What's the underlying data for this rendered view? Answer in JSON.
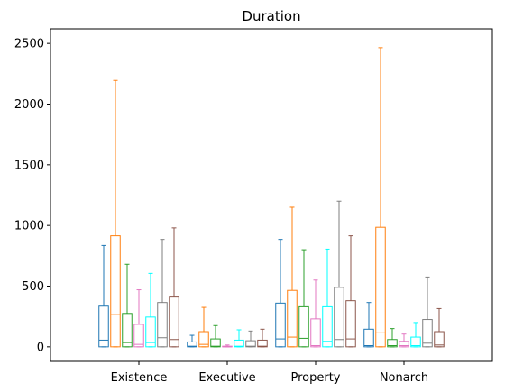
{
  "chart_data": {
    "type": "box",
    "title": "Duration",
    "xlabel": "",
    "ylabel": "",
    "categories": [
      "Existence",
      "Executive",
      "Property",
      "Nonarch"
    ],
    "ylim": [
      -120,
      2620
    ],
    "yticks": [
      0,
      500,
      1000,
      1500,
      2000,
      2500
    ],
    "ytick_labels": [
      "0",
      "500",
      "1000",
      "1500",
      "2000",
      "2500"
    ],
    "grid": false,
    "legend": "none",
    "series": [
      {
        "color": "#1f77b4",
        "boxes": [
          {
            "min": 0,
            "q1": 0,
            "median": 55,
            "q3": 335,
            "max": 835
          },
          {
            "min": 0,
            "q1": 0,
            "median": 5,
            "q3": 40,
            "max": 95
          },
          {
            "min": 0,
            "q1": 0,
            "median": 65,
            "q3": 360,
            "max": 885
          },
          {
            "min": 0,
            "q1": 0,
            "median": 10,
            "q3": 145,
            "max": 365
          }
        ]
      },
      {
        "color": "#ff7f0e",
        "boxes": [
          {
            "min": 0,
            "q1": 0,
            "median": 265,
            "q3": 915,
            "max": 2195
          },
          {
            "min": 0,
            "q1": 0,
            "median": 20,
            "q3": 125,
            "max": 325
          },
          {
            "min": 0,
            "q1": 0,
            "median": 80,
            "q3": 465,
            "max": 1150
          },
          {
            "min": 0,
            "q1": 0,
            "median": 115,
            "q3": 985,
            "max": 2465
          }
        ]
      },
      {
        "color": "#2ca02c",
        "boxes": [
          {
            "min": 0,
            "q1": 0,
            "median": 35,
            "q3": 275,
            "max": 680
          },
          {
            "min": 0,
            "q1": 0,
            "median": 5,
            "q3": 65,
            "max": 175
          },
          {
            "min": 0,
            "q1": 0,
            "median": 70,
            "q3": 330,
            "max": 800
          },
          {
            "min": 0,
            "q1": 0,
            "median": 10,
            "q3": 60,
            "max": 150
          }
        ]
      },
      {
        "color": "#e377c2",
        "boxes": [
          {
            "min": 0,
            "q1": 0,
            "median": 20,
            "q3": 185,
            "max": 470
          },
          {
            "min": 0,
            "q1": 0,
            "median": 0,
            "q3": 5,
            "max": 15
          },
          {
            "min": 0,
            "q1": 0,
            "median": 10,
            "q3": 230,
            "max": 550
          },
          {
            "min": 0,
            "q1": 0,
            "median": 10,
            "q3": 45,
            "max": 105
          }
        ]
      },
      {
        "color": "#00ffff",
        "boxes": [
          {
            "min": 0,
            "q1": 0,
            "median": 35,
            "q3": 245,
            "max": 605
          },
          {
            "min": 0,
            "q1": 0,
            "median": 5,
            "q3": 55,
            "max": 140
          },
          {
            "min": 0,
            "q1": 0,
            "median": 45,
            "q3": 330,
            "max": 805
          },
          {
            "min": 0,
            "q1": 0,
            "median": 10,
            "q3": 80,
            "max": 200
          }
        ]
      },
      {
        "color": "#7f7f7f",
        "boxes": [
          {
            "min": 0,
            "q1": 0,
            "median": 75,
            "q3": 365,
            "max": 885
          },
          {
            "min": 0,
            "q1": 0,
            "median": 5,
            "q3": 50,
            "max": 130
          },
          {
            "min": 0,
            "q1": 0,
            "median": 60,
            "q3": 490,
            "max": 1200
          },
          {
            "min": 0,
            "q1": 0,
            "median": 30,
            "q3": 225,
            "max": 575
          }
        ]
      },
      {
        "color": "#8c564b",
        "boxes": [
          {
            "min": 0,
            "q1": 0,
            "median": 60,
            "q3": 410,
            "max": 980
          },
          {
            "min": 0,
            "q1": 0,
            "median": 5,
            "q3": 55,
            "max": 145
          },
          {
            "min": 0,
            "q1": 0,
            "median": 65,
            "q3": 380,
            "max": 915
          },
          {
            "min": 0,
            "q1": 0,
            "median": 15,
            "q3": 125,
            "max": 315
          }
        ]
      }
    ]
  }
}
